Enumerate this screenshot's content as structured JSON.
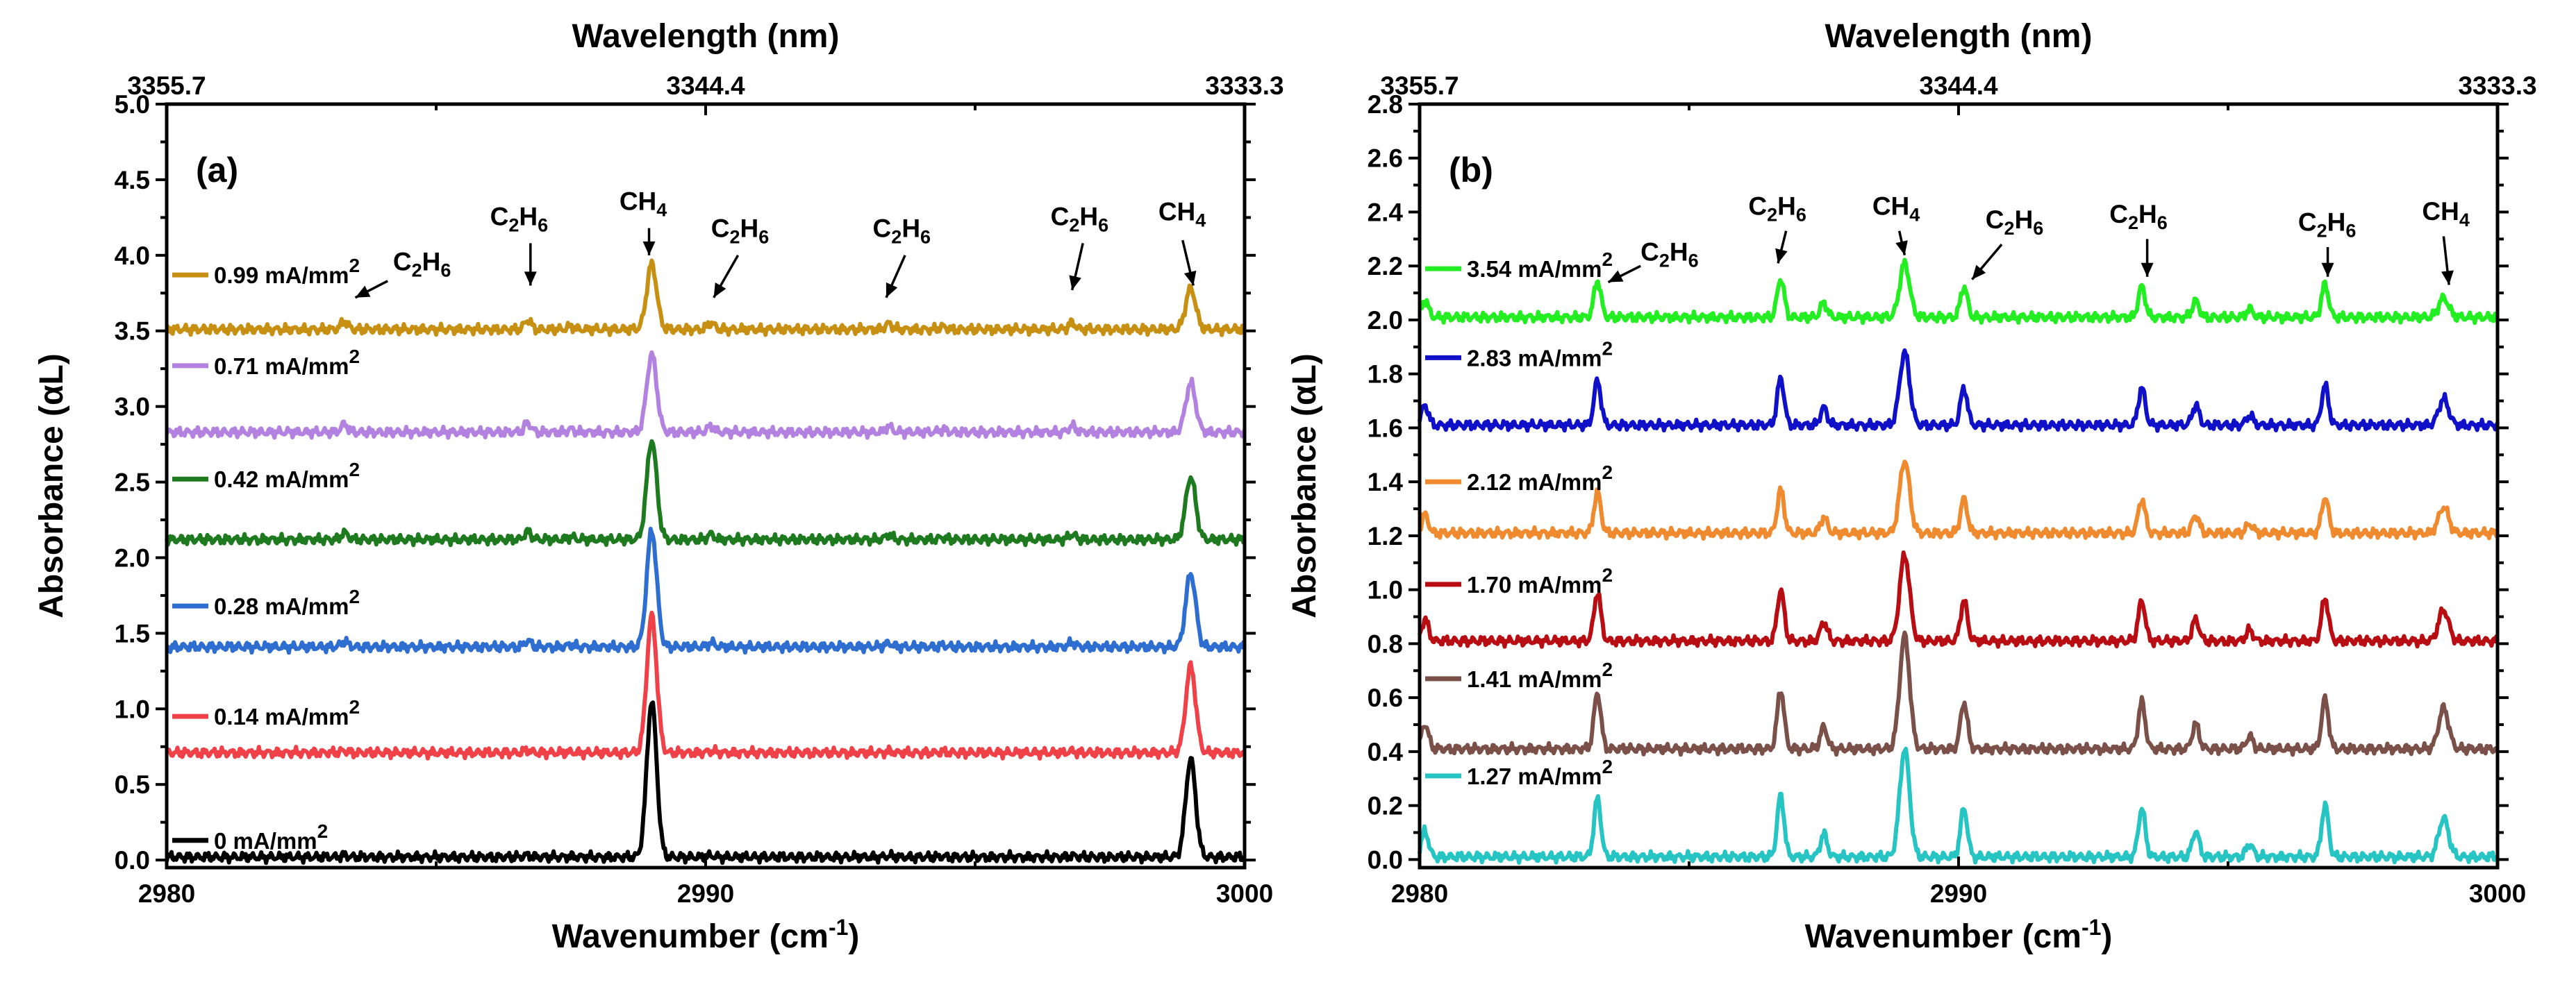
{
  "chart_data": [
    {
      "type": "line",
      "panel_label": "(a)",
      "title": "",
      "xlabel": "Wavenumber (cm",
      "xlabel_sup": "-1",
      "xlabel_close": ")",
      "ylabel": "Absorbance (αL)",
      "top_xlabel": "Wavelength (nm)",
      "xlim": [
        2980,
        3000
      ],
      "ylim": [
        -0.05,
        5.0
      ],
      "x_ticks": [
        2980,
        2990,
        3000
      ],
      "x_ticks_labels": [
        "2980",
        "2990",
        "3000"
      ],
      "x_minor": [
        2985,
        2995
      ],
      "y_ticks": [
        0.0,
        0.5,
        1.0,
        1.5,
        2.0,
        2.5,
        3.0,
        3.5,
        4.0,
        4.5,
        5.0
      ],
      "y_ticks_labels": [
        "0.0",
        "0.5",
        "1.0",
        "1.5",
        "2.0",
        "2.5",
        "3.0",
        "3.5",
        "4.0",
        "4.5",
        "5.0"
      ],
      "top_ticks": [
        2980,
        2990,
        3000
      ],
      "top_ticks_labels": [
        "3355.7",
        "3344.4",
        "3333.3"
      ],
      "top_minor": [
        2985,
        2995
      ],
      "series": [
        {
          "name": "0 mA/mm",
          "sup": "2",
          "color": "#000000",
          "offset": 0.02,
          "peak_scale": 1.0,
          "weak_scale": 0.05,
          "label_y": 0.13
        },
        {
          "name": "0.14 mA/mm",
          "sup": "2",
          "color": "#f04048",
          "offset": 0.71,
          "peak_scale": 0.88,
          "weak_scale": 0.06,
          "label_y": 0.95
        },
        {
          "name": "0.28 mA/mm",
          "sup": "2",
          "color": "#2e6ed1",
          "offset": 1.41,
          "peak_scale": 0.75,
          "weak_scale": 0.16,
          "label_y": 1.68
        },
        {
          "name": "0.42 mA/mm",
          "sup": "2",
          "color": "#1e7a1e",
          "offset": 2.12,
          "peak_scale": 0.64,
          "weak_scale": 0.2,
          "label_y": 2.52
        },
        {
          "name": "0.71 mA/mm",
          "sup": "2",
          "color": "#b382e0",
          "offset": 2.83,
          "peak_scale": 0.5,
          "weak_scale": 0.24,
          "label_y": 3.27
        },
        {
          "name": "0.99 mA/mm",
          "sup": "2",
          "color": "#c89012",
          "offset": 3.51,
          "peak_scale": 0.42,
          "weak_scale": 0.25,
          "label_y": 3.87
        }
      ],
      "peaks": [
        {
          "x": 2983.3,
          "species": "C2H6",
          "kind": "ethane",
          "height": 0.22
        },
        {
          "x": 2986.7,
          "species": "C2H6",
          "kind": "ethane",
          "height": 0.25
        },
        {
          "x": 2987.5,
          "species": "C2H6",
          "kind": "ethane_small",
          "height": 0.08
        },
        {
          "x": 2989.0,
          "species": "CH4",
          "kind": "methane",
          "height": 1.03
        },
        {
          "x": 2990.1,
          "species": "C2H6",
          "kind": "ethane",
          "height": 0.17
        },
        {
          "x": 2993.4,
          "species": "C2H6",
          "kind": "ethane",
          "height": 0.15
        },
        {
          "x": 2994.4,
          "species": "C2H6",
          "kind": "ethane_small",
          "height": 0.07
        },
        {
          "x": 2996.8,
          "species": "C2H6",
          "kind": "ethane",
          "height": 0.17
        },
        {
          "x": 2999.0,
          "species": "CH4",
          "kind": "methane",
          "height": 0.65
        }
      ],
      "annotations": [
        {
          "label": "C",
          "sub1": "2",
          "mid": "H",
          "sub2": "6",
          "tx": 2984.2,
          "ty": 3.9,
          "ax1": 2984.1,
          "ay1": 3.83,
          "ax2": 2983.5,
          "ay2": 3.72
        },
        {
          "label": "C",
          "sub1": "2",
          "mid": "H",
          "sub2": "6",
          "tx": 2986.0,
          "ty": 4.2,
          "ax1": 2986.75,
          "ay1": 4.08,
          "ax2": 2986.75,
          "ay2": 3.8
        },
        {
          "label": "CH",
          "sub1": "4",
          "mid": "",
          "sub2": "",
          "tx": 2988.4,
          "ty": 4.3,
          "ax1": 2988.95,
          "ay1": 4.18,
          "ax2": 2988.95,
          "ay2": 4.0
        },
        {
          "label": "C",
          "sub1": "2",
          "mid": "H",
          "sub2": "6",
          "tx": 2990.1,
          "ty": 4.12,
          "ax1": 2990.6,
          "ay1": 4.0,
          "ax2": 2990.15,
          "ay2": 3.72
        },
        {
          "label": "C",
          "sub1": "2",
          "mid": "H",
          "sub2": "6",
          "tx": 2993.1,
          "ty": 4.12,
          "ax1": 2993.7,
          "ay1": 4.0,
          "ax2": 2993.35,
          "ay2": 3.72
        },
        {
          "label": "C",
          "sub1": "2",
          "mid": "H",
          "sub2": "6",
          "tx": 2996.4,
          "ty": 4.2,
          "ax1": 2997.0,
          "ay1": 4.08,
          "ax2": 2996.8,
          "ay2": 3.77
        },
        {
          "label": "CH",
          "sub1": "4",
          "mid": "",
          "sub2": "",
          "tx": 2998.4,
          "ty": 4.23,
          "ax1": 2998.85,
          "ay1": 4.1,
          "ax2": 2999.05,
          "ay2": 3.8
        }
      ]
    },
    {
      "type": "line",
      "panel_label": "(b)",
      "title": "",
      "xlabel": "Wavenumber (cm",
      "xlabel_sup": "-1",
      "xlabel_close": ")",
      "ylabel": "Absorbance (αL)",
      "top_xlabel": "Wavelength (nm)",
      "xlim": [
        2980,
        3000
      ],
      "ylim": [
        -0.03,
        2.8
      ],
      "x_ticks": [
        2980,
        2990,
        3000
      ],
      "x_ticks_labels": [
        "2980",
        "2990",
        "3000"
      ],
      "x_minor": [
        2985,
        2995
      ],
      "y_ticks": [
        0.0,
        0.2,
        0.4,
        0.6,
        0.8,
        1.0,
        1.2,
        1.4,
        1.6,
        1.8,
        2.0,
        2.2,
        2.4,
        2.6,
        2.8
      ],
      "y_ticks_labels": [
        "0.0",
        "0.2",
        "0.4",
        "0.6",
        "0.8",
        "1.0",
        "1.2",
        "1.4",
        "1.6",
        "1.8",
        "2.0",
        "2.2",
        "2.4",
        "2.6",
        "2.8"
      ],
      "top_ticks": [
        2980,
        2990,
        3000
      ],
      "top_ticks_labels": [
        "3355.7",
        "3344.4",
        "3333.3"
      ],
      "top_minor": [
        2985,
        2995
      ],
      "series": [
        {
          "name": "1.27 mA/mm",
          "sup": "2",
          "color": "#27c4c4",
          "offset": 0.01,
          "peak_scale": 0.4,
          "weak_scale": 0.6,
          "label_y": 0.31
        },
        {
          "name": "1.41 mA/mm",
          "sup": "2",
          "color": "#7a5048",
          "offset": 0.41,
          "peak_scale": 0.42,
          "weak_scale": 0.58,
          "label_y": 0.67
        },
        {
          "name": "1.70 mA/mm",
          "sup": "2",
          "color": "#b80d12",
          "offset": 0.81,
          "peak_scale": 0.32,
          "weak_scale": 0.5,
          "label_y": 1.02
        },
        {
          "name": "2.12 mA/mm",
          "sup": "2",
          "color": "#f08a2e",
          "offset": 1.21,
          "peak_scale": 0.27,
          "weak_scale": 0.42,
          "label_y": 1.4
        },
        {
          "name": "2.83 mA/mm",
          "sup": "2",
          "color": "#1010c8",
          "offset": 1.61,
          "peak_scale": 0.27,
          "weak_scale": 0.46,
          "label_y": 1.86
        },
        {
          "name": "3.54 mA/mm",
          "sup": "2",
          "color": "#22ee22",
          "offset": 2.01,
          "peak_scale": 0.2,
          "weak_scale": 0.38,
          "label_y": 2.19
        }
      ],
      "peaks": [
        {
          "x": 2980.1,
          "species": "C2H6",
          "kind": "ethane",
          "height": 0.16
        },
        {
          "x": 2983.3,
          "species": "C2H6",
          "kind": "ethane",
          "height": 0.36
        },
        {
          "x": 2986.7,
          "species": "C2H6",
          "kind": "ethane",
          "height": 0.38
        },
        {
          "x": 2987.5,
          "species": "C2H6",
          "kind": "ethane_small",
          "height": 0.14
        },
        {
          "x": 2989.0,
          "species": "CH4",
          "kind": "methane",
          "height": 1.0
        },
        {
          "x": 2990.1,
          "species": "C2H6",
          "kind": "ethane",
          "height": 0.3
        },
        {
          "x": 2993.4,
          "species": "C2H6",
          "kind": "ethane",
          "height": 0.3
        },
        {
          "x": 2994.4,
          "species": "C2H6",
          "kind": "ethane_small",
          "height": 0.16
        },
        {
          "x": 2995.4,
          "species": "C2H6",
          "kind": "ethane_small",
          "height": 0.08
        },
        {
          "x": 2996.8,
          "species": "C2H6",
          "kind": "ethane",
          "height": 0.32
        },
        {
          "x": 2999.0,
          "species": "CH4",
          "kind": "methane",
          "height": 0.36
        }
      ],
      "annotations": [
        {
          "label": "C",
          "sub1": "2",
          "mid": "H",
          "sub2": "6",
          "tx": 2984.1,
          "ty": 2.22,
          "ax1": 2984.1,
          "ay1": 2.2,
          "ax2": 2983.5,
          "ay2": 2.14
        },
        {
          "label": "C",
          "sub1": "2",
          "mid": "H",
          "sub2": "6",
          "tx": 2986.1,
          "ty": 2.39,
          "ax1": 2986.8,
          "ay1": 2.33,
          "ax2": 2986.65,
          "ay2": 2.21
        },
        {
          "label": "CH",
          "sub1": "4",
          "mid": "",
          "sub2": "",
          "tx": 2988.4,
          "ty": 2.39,
          "ax1": 2988.9,
          "ay1": 2.33,
          "ax2": 2989.0,
          "ay2": 2.24
        },
        {
          "label": "C",
          "sub1": "2",
          "mid": "H",
          "sub2": "6",
          "tx": 2990.5,
          "ty": 2.34,
          "ax1": 2990.8,
          "ay1": 2.28,
          "ax2": 2990.25,
          "ay2": 2.15
        },
        {
          "label": "C",
          "sub1": "2",
          "mid": "H",
          "sub2": "6",
          "tx": 2992.8,
          "ty": 2.36,
          "ax1": 2993.5,
          "ay1": 2.3,
          "ax2": 2993.5,
          "ay2": 2.16
        },
        {
          "label": "C",
          "sub1": "2",
          "mid": "H",
          "sub2": "6",
          "tx": 2996.3,
          "ty": 2.33,
          "ax1": 2996.85,
          "ay1": 2.27,
          "ax2": 2996.85,
          "ay2": 2.16
        },
        {
          "label": "CH",
          "sub1": "4",
          "mid": "",
          "sub2": "",
          "tx": 2998.6,
          "ty": 2.37,
          "ax1": 2999.0,
          "ay1": 2.31,
          "ax2": 2999.1,
          "ay2": 2.13
        }
      ]
    }
  ]
}
